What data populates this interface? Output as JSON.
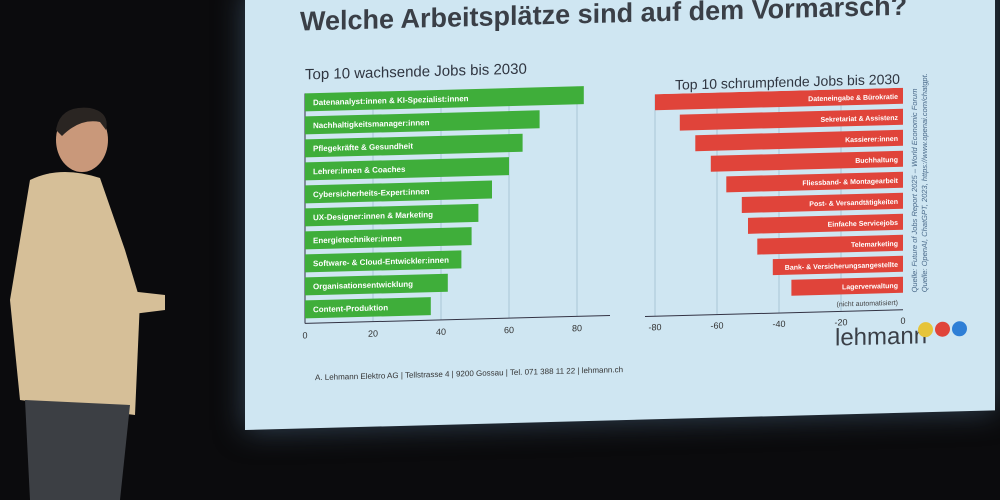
{
  "slide": {
    "title": "Welche Arbeitsplätze sind auf dem Vormarsch?",
    "footer": "A. Lehmann Elektro AG | Tellstrasse 4 | 9200 Gossau | Tel. 071 388 11 22 | lehmann.ch",
    "sources": [
      "Quelle: Future of Jobs Report 2025 – World Economic Forum",
      "Quelle: OpenAI, ChatGPT, 2023, https://www.openai.com/chatgpt."
    ],
    "logo": "lehmann",
    "colors": {
      "grow": "#3fae3a",
      "shrink": "#e0443a",
      "slide": "#cfe6f2"
    }
  },
  "chart_data": [
    {
      "type": "bar",
      "orientation": "horizontal",
      "title": "Top 10 wachsende Jobs bis 2030",
      "categories": [
        "Datenanalyst:innen & KI-Spezialist:innen",
        "Nachhaltigkeitsmanager:innen",
        "Pflegekräfte & Gesundheit",
        "Lehrer:innen & Coaches",
        "Cybersicherheits-Expert:innen",
        "UX-Designer:innen & Marketing",
        "Energietechniker:innen",
        "Software- & Cloud-Entwickler:innen",
        "Organisationsentwicklung",
        "Content-Produktion"
      ],
      "values": [
        82,
        69,
        64,
        60,
        55,
        51,
        49,
        46,
        42,
        37
      ],
      "xlim": [
        0,
        90
      ],
      "xticks": [
        0,
        20,
        40,
        60,
        80
      ]
    },
    {
      "type": "bar",
      "orientation": "horizontal",
      "title": "Top 10 schrumpfende Jobs bis 2030",
      "categories": [
        "Dateneingabe & Bürokratie",
        "Sekretariat & Assistenz",
        "Kassierer:innen",
        "Buchhaltung",
        "Fliessband- & Montagearbeit",
        "Post- & Versandtätigkeiten",
        "Einfache Servicejobs",
        "Telemarketing",
        "Bank- & Versicherungsangestellte",
        "Lagerverwaltung"
      ],
      "values": [
        -80,
        -72,
        -67,
        -62,
        -57,
        -52,
        -50,
        -47,
        -42,
        -36
      ],
      "annotation": "(nicht automatisiert)",
      "xlim": [
        -80,
        0
      ],
      "xticks": [
        -80,
        -60,
        -40,
        -20,
        0
      ]
    }
  ]
}
